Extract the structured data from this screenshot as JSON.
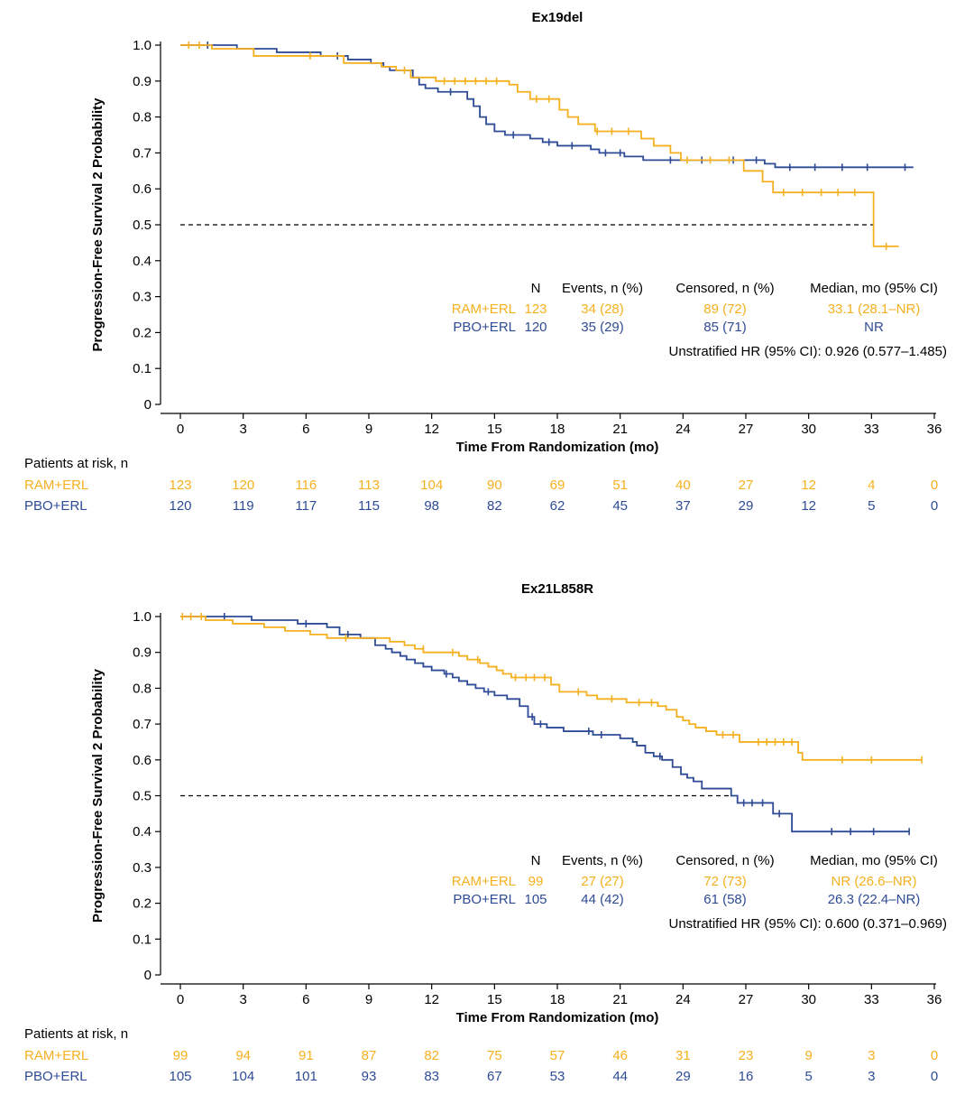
{
  "colors": {
    "ram": "#f5b01f",
    "pbo": "#2e4b95",
    "axis": "#000000"
  },
  "chart_data": [
    {
      "type": "line",
      "title": "Ex19del",
      "xlabel": "Time From Randomization (mo)",
      "ylabel": "Progression-Free Survival 2 Probability",
      "xlim": [
        0,
        36
      ],
      "ylim": [
        0,
        1
      ],
      "x_ticks": [
        "0",
        "3",
        "6",
        "9",
        "12",
        "15",
        "18",
        "21",
        "24",
        "27",
        "30",
        "33",
        "36"
      ],
      "y_ticks": [
        "1.0",
        "0.9",
        "0.8",
        "0.7",
        "0.6",
        "0.5",
        "0.4",
        "0.3",
        "0.2",
        "0.1",
        "0"
      ],
      "median_line": 0.5,
      "median_line_end": 33.1,
      "series": [
        {
          "name": "RAM+ERL",
          "color_key": "ram",
          "steps": [
            [
              0,
              1.0
            ],
            [
              1.5,
              0.99
            ],
            [
              3.5,
              0.97
            ],
            [
              7.8,
              0.95
            ],
            [
              9.6,
              0.94
            ],
            [
              10.3,
              0.93
            ],
            [
              11.0,
              0.91
            ],
            [
              12.2,
              0.9
            ],
            [
              15.7,
              0.89
            ],
            [
              16.1,
              0.87
            ],
            [
              16.7,
              0.85
            ],
            [
              18.1,
              0.82
            ],
            [
              18.5,
              0.8
            ],
            [
              19.0,
              0.78
            ],
            [
              19.8,
              0.76
            ],
            [
              22.0,
              0.74
            ],
            [
              22.6,
              0.72
            ],
            [
              23.4,
              0.7
            ],
            [
              23.9,
              0.68
            ],
            [
              26.9,
              0.65
            ],
            [
              27.8,
              0.62
            ],
            [
              28.3,
              0.59
            ],
            [
              33.1,
              0.44
            ],
            [
              34.3,
              0.44
            ]
          ],
          "censors": [
            [
              0.4,
              1.0
            ],
            [
              0.9,
              1.0
            ],
            [
              6.2,
              0.97
            ],
            [
              10.7,
              0.93
            ],
            [
              12.6,
              0.9
            ],
            [
              13.1,
              0.9
            ],
            [
              13.6,
              0.9
            ],
            [
              14.1,
              0.9
            ],
            [
              14.6,
              0.9
            ],
            [
              15.1,
              0.9
            ],
            [
              17.0,
              0.85
            ],
            [
              17.6,
              0.85
            ],
            [
              19.9,
              0.76
            ],
            [
              20.6,
              0.76
            ],
            [
              21.4,
              0.76
            ],
            [
              24.2,
              0.68
            ],
            [
              25.3,
              0.68
            ],
            [
              26.2,
              0.68
            ],
            [
              28.8,
              0.59
            ],
            [
              29.7,
              0.59
            ],
            [
              30.6,
              0.59
            ],
            [
              31.4,
              0.59
            ],
            [
              32.2,
              0.59
            ],
            [
              33.7,
              0.44
            ]
          ],
          "risk": [
            "123",
            "120",
            "116",
            "113",
            "104",
            "90",
            "69",
            "51",
            "40",
            "27",
            "12",
            "4",
            "0"
          ]
        },
        {
          "name": "PBO+ERL",
          "color_key": "pbo",
          "steps": [
            [
              0,
              1.0
            ],
            [
              2.7,
              0.99
            ],
            [
              4.6,
              0.98
            ],
            [
              6.7,
              0.97
            ],
            [
              8.0,
              0.96
            ],
            [
              9.1,
              0.95
            ],
            [
              9.7,
              0.94
            ],
            [
              10.0,
              0.93
            ],
            [
              11.1,
              0.91
            ],
            [
              11.4,
              0.89
            ],
            [
              11.7,
              0.88
            ],
            [
              12.3,
              0.87
            ],
            [
              13.7,
              0.85
            ],
            [
              14.0,
              0.83
            ],
            [
              14.3,
              0.8
            ],
            [
              14.6,
              0.78
            ],
            [
              15.0,
              0.76
            ],
            [
              15.5,
              0.75
            ],
            [
              16.7,
              0.74
            ],
            [
              17.3,
              0.73
            ],
            [
              18.0,
              0.72
            ],
            [
              19.6,
              0.71
            ],
            [
              20.0,
              0.7
            ],
            [
              21.2,
              0.69
            ],
            [
              22.1,
              0.68
            ],
            [
              27.9,
              0.67
            ],
            [
              28.4,
              0.66
            ],
            [
              35.0,
              0.66
            ]
          ],
          "censors": [
            [
              1.3,
              1.0
            ],
            [
              7.5,
              0.97
            ],
            [
              12.9,
              0.87
            ],
            [
              15.9,
              0.75
            ],
            [
              17.6,
              0.73
            ],
            [
              18.7,
              0.72
            ],
            [
              20.3,
              0.7
            ],
            [
              21.0,
              0.7
            ],
            [
              23.4,
              0.68
            ],
            [
              24.9,
              0.68
            ],
            [
              26.4,
              0.68
            ],
            [
              27.5,
              0.68
            ],
            [
              29.1,
              0.66
            ],
            [
              30.3,
              0.66
            ],
            [
              31.6,
              0.66
            ],
            [
              32.8,
              0.66
            ],
            [
              34.6,
              0.66
            ]
          ],
          "risk": [
            "120",
            "119",
            "117",
            "115",
            "98",
            "82",
            "62",
            "45",
            "37",
            "29",
            "12",
            "5",
            "0"
          ]
        }
      ],
      "table": {
        "headers": [
          "N",
          "Events, n (%)",
          "Censored, n (%)",
          "Median, mo (95% CI)"
        ],
        "rows": [
          {
            "arm": "RAM+ERL",
            "color_key": "ram",
            "n": "123",
            "events": "34 (28)",
            "censored": "89 (72)",
            "median": "33.1 (28.1–NR)"
          },
          {
            "arm": "PBO+ERL",
            "color_key": "pbo",
            "n": "120",
            "events": "35 (29)",
            "censored": "85 (71)",
            "median": "NR"
          }
        ],
        "hr": "Unstratified HR (95% CI): 0.926 (0.577–1.485)"
      },
      "risk_header": "Patients at risk, n"
    },
    {
      "type": "line",
      "title": "Ex21L858R",
      "xlabel": "Time From Randomization (mo)",
      "ylabel": "Progression-Free Survival 2 Probability",
      "xlim": [
        0,
        36
      ],
      "ylim": [
        0,
        1
      ],
      "x_ticks": [
        "0",
        "3",
        "6",
        "9",
        "12",
        "15",
        "18",
        "21",
        "24",
        "27",
        "30",
        "33",
        "36"
      ],
      "y_ticks": [
        "1.0",
        "0.9",
        "0.8",
        "0.7",
        "0.6",
        "0.5",
        "0.4",
        "0.3",
        "0.2",
        "0.1",
        "0"
      ],
      "median_line": 0.5,
      "median_line_end": 26.3,
      "series": [
        {
          "name": "RAM+ERL",
          "color_key": "ram",
          "steps": [
            [
              0,
              1.0
            ],
            [
              1.2,
              0.99
            ],
            [
              2.5,
              0.98
            ],
            [
              4.0,
              0.97
            ],
            [
              5.0,
              0.96
            ],
            [
              6.2,
              0.95
            ],
            [
              7.0,
              0.94
            ],
            [
              10.0,
              0.93
            ],
            [
              10.7,
              0.92
            ],
            [
              11.2,
              0.91
            ],
            [
              11.6,
              0.9
            ],
            [
              13.3,
              0.89
            ],
            [
              13.7,
              0.88
            ],
            [
              14.3,
              0.87
            ],
            [
              14.7,
              0.86
            ],
            [
              15.1,
              0.85
            ],
            [
              15.4,
              0.84
            ],
            [
              15.8,
              0.83
            ],
            [
              17.7,
              0.81
            ],
            [
              18.1,
              0.79
            ],
            [
              19.4,
              0.78
            ],
            [
              19.9,
              0.77
            ],
            [
              21.3,
              0.76
            ],
            [
              22.8,
              0.75
            ],
            [
              23.2,
              0.74
            ],
            [
              23.7,
              0.72
            ],
            [
              24.0,
              0.71
            ],
            [
              24.3,
              0.7
            ],
            [
              24.6,
              0.69
            ],
            [
              25.1,
              0.68
            ],
            [
              25.6,
              0.67
            ],
            [
              26.7,
              0.65
            ],
            [
              29.5,
              0.62
            ],
            [
              29.7,
              0.6
            ],
            [
              35.4,
              0.6
            ]
          ],
          "censors": [
            [
              0.1,
              1.0
            ],
            [
              0.5,
              1.0
            ],
            [
              1.0,
              1.0
            ],
            [
              7.9,
              0.94
            ],
            [
              11.6,
              0.91
            ],
            [
              13.0,
              0.9
            ],
            [
              14.2,
              0.88
            ],
            [
              16.0,
              0.83
            ],
            [
              16.5,
              0.83
            ],
            [
              16.9,
              0.83
            ],
            [
              17.4,
              0.83
            ],
            [
              19.0,
              0.79
            ],
            [
              20.6,
              0.77
            ],
            [
              21.9,
              0.76
            ],
            [
              22.5,
              0.76
            ],
            [
              25.9,
              0.67
            ],
            [
              26.4,
              0.67
            ],
            [
              27.6,
              0.65
            ],
            [
              28.0,
              0.65
            ],
            [
              28.4,
              0.65
            ],
            [
              28.8,
              0.65
            ],
            [
              29.2,
              0.65
            ],
            [
              31.6,
              0.6
            ],
            [
              33.0,
              0.6
            ],
            [
              35.4,
              0.6
            ]
          ],
          "risk": [
            "99",
            "94",
            "91",
            "87",
            "82",
            "75",
            "57",
            "46",
            "31",
            "23",
            "9",
            "3",
            "0"
          ]
        },
        {
          "name": "PBO+ERL",
          "color_key": "pbo",
          "steps": [
            [
              0,
              1.0
            ],
            [
              3.4,
              0.99
            ],
            [
              5.6,
              0.98
            ],
            [
              7.0,
              0.97
            ],
            [
              7.6,
              0.95
            ],
            [
              8.6,
              0.94
            ],
            [
              9.3,
              0.92
            ],
            [
              9.8,
              0.91
            ],
            [
              10.1,
              0.9
            ],
            [
              10.5,
              0.89
            ],
            [
              10.8,
              0.88
            ],
            [
              11.2,
              0.87
            ],
            [
              11.6,
              0.86
            ],
            [
              12.0,
              0.85
            ],
            [
              12.6,
              0.84
            ],
            [
              13.0,
              0.83
            ],
            [
              13.3,
              0.82
            ],
            [
              13.7,
              0.81
            ],
            [
              14.1,
              0.8
            ],
            [
              14.5,
              0.79
            ],
            [
              15.0,
              0.78
            ],
            [
              15.6,
              0.77
            ],
            [
              16.2,
              0.75
            ],
            [
              16.6,
              0.72
            ],
            [
              16.9,
              0.7
            ],
            [
              17.5,
              0.69
            ],
            [
              18.3,
              0.68
            ],
            [
              19.7,
              0.67
            ],
            [
              21.0,
              0.66
            ],
            [
              21.6,
              0.65
            ],
            [
              21.8,
              0.64
            ],
            [
              22.2,
              0.62
            ],
            [
              22.6,
              0.61
            ],
            [
              23.0,
              0.6
            ],
            [
              23.5,
              0.58
            ],
            [
              23.9,
              0.56
            ],
            [
              24.2,
              0.55
            ],
            [
              24.5,
              0.54
            ],
            [
              24.9,
              0.52
            ],
            [
              26.3,
              0.5
            ],
            [
              26.6,
              0.48
            ],
            [
              28.3,
              0.45
            ],
            [
              29.2,
              0.4
            ],
            [
              34.8,
              0.4
            ]
          ],
          "censors": [
            [
              2.1,
              1.0
            ],
            [
              6.0,
              0.98
            ],
            [
              8.0,
              0.95
            ],
            [
              12.7,
              0.84
            ],
            [
              14.7,
              0.79
            ],
            [
              16.8,
              0.72
            ],
            [
              17.2,
              0.7
            ],
            [
              19.5,
              0.68
            ],
            [
              20.1,
              0.67
            ],
            [
              22.9,
              0.61
            ],
            [
              26.9,
              0.48
            ],
            [
              27.3,
              0.48
            ],
            [
              27.8,
              0.48
            ],
            [
              28.6,
              0.45
            ],
            [
              31.1,
              0.4
            ],
            [
              32.0,
              0.4
            ],
            [
              33.1,
              0.4
            ],
            [
              34.8,
              0.4
            ]
          ],
          "risk": [
            "105",
            "104",
            "101",
            "93",
            "83",
            "67",
            "53",
            "44",
            "29",
            "16",
            "5",
            "3",
            "0"
          ]
        }
      ],
      "table": {
        "headers": [
          "N",
          "Events, n (%)",
          "Censored, n (%)",
          "Median, mo (95% CI)"
        ],
        "rows": [
          {
            "arm": "RAM+ERL",
            "color_key": "ram",
            "n": "99",
            "events": "27 (27)",
            "censored": "72 (73)",
            "median": "NR (26.6–NR)"
          },
          {
            "arm": "PBO+ERL",
            "color_key": "pbo",
            "n": "105",
            "events": "44 (42)",
            "censored": "61 (58)",
            "median": "26.3 (22.4–NR)"
          }
        ],
        "hr": "Unstratified HR (95% CI): 0.600 (0.371–0.969)"
      },
      "risk_header": "Patients at risk, n"
    }
  ]
}
